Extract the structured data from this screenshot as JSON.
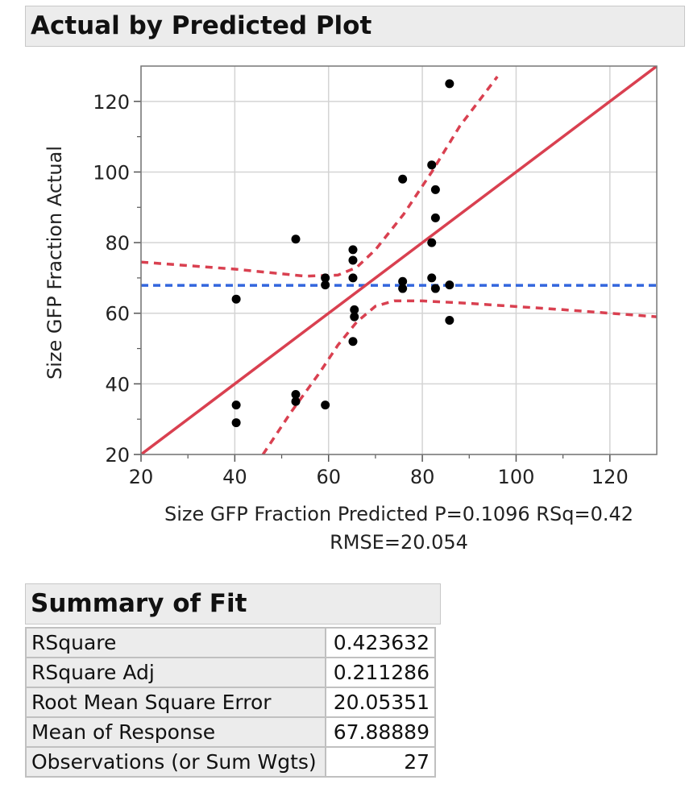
{
  "plot_panel": {
    "title": "Actual by Predicted Plot"
  },
  "chart_data": {
    "type": "scatter",
    "xlabel": "Size GFP Fraction Predicted P=0.1096 RSq=0.42",
    "xlabel_line2": "RMSE=20.054",
    "ylabel": "Size GFP Fraction Actual",
    "xlim": [
      20,
      130
    ],
    "ylim": [
      20,
      130
    ],
    "x_ticks": [
      20,
      40,
      60,
      80,
      100,
      120
    ],
    "y_ticks": [
      20,
      40,
      60,
      80,
      100,
      120
    ],
    "grid": true,
    "points": [
      {
        "x": 40.3,
        "y": 64
      },
      {
        "x": 40.3,
        "y": 34
      },
      {
        "x": 40.3,
        "y": 29
      },
      {
        "x": 53,
        "y": 81
      },
      {
        "x": 53,
        "y": 37
      },
      {
        "x": 53,
        "y": 35
      },
      {
        "x": 59.3,
        "y": 70
      },
      {
        "x": 59.3,
        "y": 68
      },
      {
        "x": 59.3,
        "y": 34
      },
      {
        "x": 65.2,
        "y": 78
      },
      {
        "x": 65.2,
        "y": 75
      },
      {
        "x": 65.2,
        "y": 70
      },
      {
        "x": 65.5,
        "y": 61
      },
      {
        "x": 65.5,
        "y": 59
      },
      {
        "x": 65.2,
        "y": 52
      },
      {
        "x": 75.8,
        "y": 98
      },
      {
        "x": 75.8,
        "y": 69
      },
      {
        "x": 75.8,
        "y": 67
      },
      {
        "x": 82,
        "y": 102
      },
      {
        "x": 82,
        "y": 80
      },
      {
        "x": 82,
        "y": 70
      },
      {
        "x": 82.8,
        "y": 95
      },
      {
        "x": 82.8,
        "y": 87
      },
      {
        "x": 82.8,
        "y": 67
      },
      {
        "x": 85.8,
        "y": 125
      },
      {
        "x": 85.8,
        "y": 68
      },
      {
        "x": 85.8,
        "y": 58
      }
    ],
    "fit_line": {
      "x": [
        20,
        130
      ],
      "y": [
        20,
        130
      ],
      "color": "#d94050"
    },
    "mean_line": {
      "y": 67.88889,
      "color": "#3366dd"
    },
    "confidence_upper": [
      {
        "x": 20,
        "y": 74.5
      },
      {
        "x": 40,
        "y": 72.5
      },
      {
        "x": 55,
        "y": 70.5
      },
      {
        "x": 62,
        "y": 70.8
      },
      {
        "x": 66,
        "y": 73
      },
      {
        "x": 70,
        "y": 78
      },
      {
        "x": 76,
        "y": 88
      },
      {
        "x": 82,
        "y": 100
      },
      {
        "x": 88,
        "y": 113
      },
      {
        "x": 96,
        "y": 127
      }
    ],
    "confidence_lower": [
      {
        "x": 46,
        "y": 20
      },
      {
        "x": 52,
        "y": 32
      },
      {
        "x": 58,
        "y": 43
      },
      {
        "x": 62,
        "y": 51
      },
      {
        "x": 66,
        "y": 57.5
      },
      {
        "x": 70,
        "y": 62
      },
      {
        "x": 74,
        "y": 63.5
      },
      {
        "x": 80,
        "y": 63.5
      },
      {
        "x": 90,
        "y": 62.8
      },
      {
        "x": 110,
        "y": 61
      },
      {
        "x": 130,
        "y": 59
      }
    ],
    "confidence_color": "#d94050",
    "point_color": "#000000"
  },
  "fit_panel": {
    "title": "Summary of Fit",
    "rows": [
      {
        "label": "RSquare",
        "value": "0.423632"
      },
      {
        "label": "RSquare Adj",
        "value": "0.211286"
      },
      {
        "label": "Root Mean Square Error",
        "value": "20.05351"
      },
      {
        "label": "Mean of Response",
        "value": "67.88889"
      },
      {
        "label": "Observations (or Sum Wgts)",
        "value": "27"
      }
    ]
  }
}
